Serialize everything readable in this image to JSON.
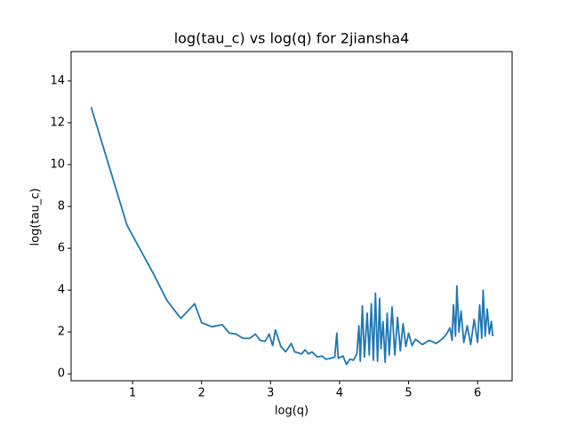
{
  "chart_data": {
    "type": "line",
    "title": "log(tau_c) vs log(q) for 2jiansha4",
    "x_label": "log(q)",
    "y_label": "log(tau_c)",
    "color": "#1f77b4",
    "x": [
      0.4,
      0.92,
      1.3,
      1.5,
      1.7,
      1.9,
      2.0,
      2.15,
      2.3,
      2.4,
      2.5,
      2.6,
      2.7,
      2.78,
      2.85,
      2.92,
      2.98,
      3.03,
      3.07,
      3.15,
      3.22,
      3.3,
      3.35,
      3.45,
      3.5,
      3.55,
      3.6,
      3.68,
      3.75,
      3.8,
      3.88,
      3.93,
      3.96,
      3.98,
      4.05,
      4.1,
      4.15,
      4.2,
      4.25,
      4.28,
      4.3,
      4.33,
      4.36,
      4.4,
      4.43,
      4.46,
      4.49,
      4.52,
      4.55,
      4.58,
      4.6,
      4.63,
      4.66,
      4.69,
      4.72,
      4.76,
      4.8,
      4.84,
      4.88,
      4.92,
      4.96,
      5.0,
      5.05,
      5.1,
      5.2,
      5.3,
      5.4,
      5.5,
      5.55,
      5.6,
      5.63,
      5.65,
      5.68,
      5.7,
      5.73,
      5.76,
      5.8,
      5.85,
      5.9,
      5.95,
      6.0,
      6.03,
      6.06,
      6.08,
      6.11,
      6.14,
      6.17,
      6.2,
      6.22
    ],
    "values": [
      12.75,
      7.1,
      4.8,
      3.5,
      2.65,
      3.35,
      2.45,
      2.25,
      2.35,
      1.95,
      1.9,
      1.7,
      1.7,
      1.9,
      1.6,
      1.55,
      1.9,
      1.35,
      2.1,
      1.3,
      1.05,
      1.45,
      1.05,
      0.95,
      1.15,
      0.95,
      1.05,
      0.8,
      0.85,
      0.7,
      0.75,
      0.8,
      1.95,
      0.75,
      0.85,
      0.45,
      0.7,
      0.65,
      0.95,
      2.3,
      0.6,
      3.25,
      0.8,
      2.9,
      0.9,
      3.35,
      0.65,
      3.85,
      0.6,
      3.6,
      1.2,
      2.5,
      0.55,
      2.9,
      0.9,
      3.2,
      0.9,
      2.7,
      1.1,
      2.4,
      1.3,
      1.95,
      1.35,
      1.65,
      1.4,
      1.6,
      1.45,
      1.7,
      1.9,
      2.2,
      1.6,
      3.3,
      1.8,
      4.2,
      2.0,
      3.0,
      1.5,
      2.3,
      1.4,
      2.6,
      1.5,
      3.3,
      1.7,
      4.0,
      1.8,
      3.1,
      1.9,
      2.5,
      1.8
    ],
    "xlim": [
      0.11,
      6.5
    ],
    "ylim": [
      -0.33,
      15.4
    ],
    "xticks": [
      1,
      2,
      3,
      4,
      5,
      6
    ],
    "yticks": [
      0,
      2,
      4,
      6,
      8,
      10,
      12,
      14
    ]
  }
}
